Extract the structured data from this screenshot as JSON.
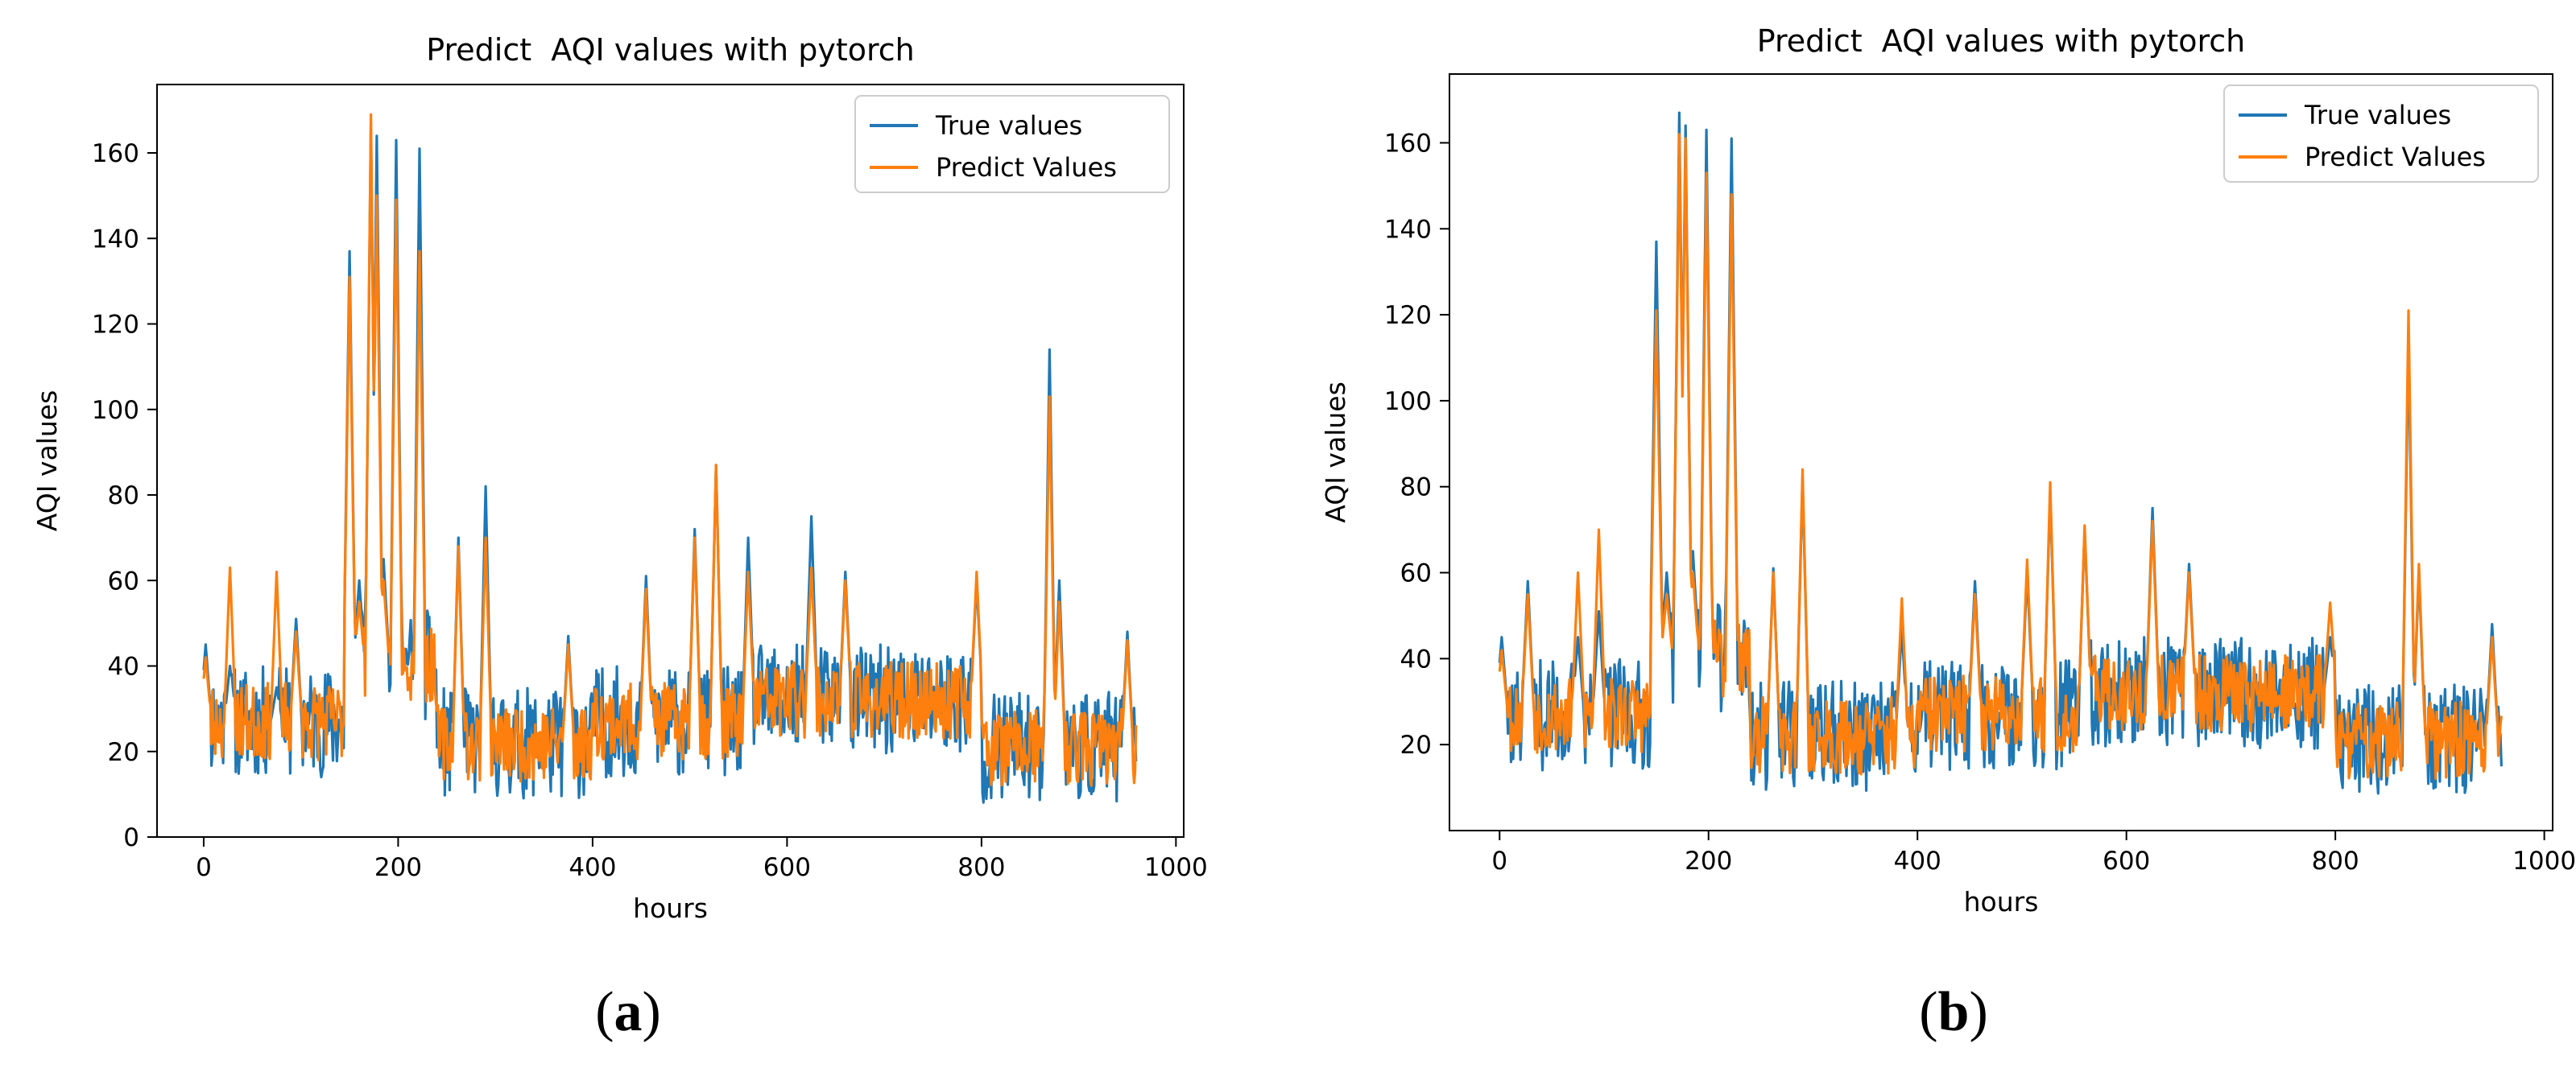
{
  "colors": {
    "true_series": "#1f77b4",
    "predict_series": "#ff7f0e",
    "axes": "#000000",
    "legend_border": "#cccccc"
  },
  "chart_data": [
    {
      "panel_label": "a",
      "type": "line",
      "title": "Predict  AQI values with pytorch",
      "xlabel": "hours",
      "ylabel": "AQI values",
      "xlim": [
        -48,
        1008
      ],
      "ylim": [
        0,
        176
      ],
      "xticks": [
        0,
        200,
        400,
        600,
        800,
        1000
      ],
      "yticks": [
        0,
        20,
        40,
        60,
        80,
        100,
        120,
        140,
        160
      ],
      "legend_loc": "upper-right",
      "series": [
        {
          "name": "True values",
          "color": "#1f77b4",
          "seed": 11,
          "jitter": 13,
          "peaks": [
            [
              2,
              45
            ],
            [
              27,
              40
            ],
            [
              75,
              35
            ],
            [
              95,
              51
            ],
            [
              150,
              137
            ],
            [
              160,
              60
            ],
            [
              172,
              167
            ],
            [
              178,
              164
            ],
            [
              185,
              65
            ],
            [
              198,
              163
            ],
            [
              204,
              40
            ],
            [
              222,
              161
            ],
            [
              262,
              70
            ],
            [
              290,
              82
            ],
            [
              375,
              47
            ],
            [
              455,
              61
            ],
            [
              505,
              72
            ],
            [
              527,
              87
            ],
            [
              560,
              70
            ],
            [
              625,
              75
            ],
            [
              660,
              62
            ],
            [
              795,
              60
            ],
            [
              870,
              114
            ],
            [
              880,
              60
            ],
            [
              950,
              48
            ]
          ]
        },
        {
          "name": "Predict Values",
          "color": "#ff7f0e",
          "seed": 23,
          "jitter": 9,
          "peaks": [
            [
              2,
              42
            ],
            [
              27,
              63
            ],
            [
              75,
              62
            ],
            [
              95,
              48
            ],
            [
              150,
              131
            ],
            [
              160,
              55
            ],
            [
              172,
              169
            ],
            [
              178,
              150
            ],
            [
              185,
              60
            ],
            [
              198,
              149
            ],
            [
              204,
              38
            ],
            [
              222,
              137
            ],
            [
              262,
              68
            ],
            [
              290,
              70
            ],
            [
              375,
              45
            ],
            [
              455,
              58
            ],
            [
              505,
              70
            ],
            [
              527,
              87
            ],
            [
              560,
              62
            ],
            [
              625,
              63
            ],
            [
              660,
              60
            ],
            [
              795,
              62
            ],
            [
              870,
              103
            ],
            [
              880,
              55
            ],
            [
              950,
              46
            ]
          ]
        }
      ]
    },
    {
      "panel_label": "b",
      "type": "line",
      "title": "Predict  AQI values with pytorch",
      "xlabel": "hours",
      "ylabel": "AQI values",
      "xlim": [
        -48,
        1008
      ],
      "ylim": [
        0,
        176
      ],
      "xticks": [
        0,
        200,
        400,
        600,
        800,
        1000
      ],
      "yticks": [
        20,
        40,
        60,
        80,
        100,
        120,
        140,
        160
      ],
      "legend_loc": "upper-right",
      "series": [
        {
          "name": "True values",
          "color": "#1f77b4",
          "seed": 37,
          "jitter": 13,
          "peaks": [
            [
              2,
              45
            ],
            [
              27,
              58
            ],
            [
              75,
              45
            ],
            [
              95,
              51
            ],
            [
              150,
              137
            ],
            [
              160,
              60
            ],
            [
              172,
              167
            ],
            [
              178,
              164
            ],
            [
              185,
              65
            ],
            [
              198,
              163
            ],
            [
              204,
              40
            ],
            [
              222,
              161
            ],
            [
              262,
              61
            ],
            [
              290,
              82
            ],
            [
              385,
              47
            ],
            [
              455,
              58
            ],
            [
              505,
              60
            ],
            [
              527,
              79
            ],
            [
              560,
              70
            ],
            [
              625,
              75
            ],
            [
              660,
              62
            ],
            [
              795,
              45
            ],
            [
              870,
              114
            ],
            [
              880,
              60
            ],
            [
              950,
              48
            ]
          ]
        },
        {
          "name": "Predict Values",
          "color": "#ff7f0e",
          "seed": 53,
          "jitter": 9,
          "peaks": [
            [
              2,
              42
            ],
            [
              27,
              55
            ],
            [
              75,
              60
            ],
            [
              95,
              70
            ],
            [
              150,
              121
            ],
            [
              160,
              55
            ],
            [
              172,
              162
            ],
            [
              178,
              161
            ],
            [
              185,
              60
            ],
            [
              198,
              153
            ],
            [
              204,
              38
            ],
            [
              222,
              148
            ],
            [
              262,
              60
            ],
            [
              290,
              84
            ],
            [
              385,
              54
            ],
            [
              455,
              55
            ],
            [
              505,
              63
            ],
            [
              527,
              81
            ],
            [
              560,
              71
            ],
            [
              625,
              72
            ],
            [
              660,
              60
            ],
            [
              795,
              53
            ],
            [
              870,
              121
            ],
            [
              880,
              62
            ],
            [
              950,
              45
            ]
          ]
        }
      ]
    }
  ]
}
